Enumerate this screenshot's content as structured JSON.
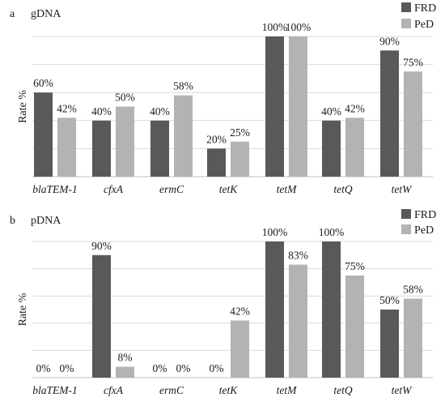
{
  "chart_data": [
    {
      "type": "bar",
      "panel_letter": "a",
      "title": "gDNA",
      "ylabel": "Rate %",
      "xlabel": "",
      "ylim": [
        0,
        100
      ],
      "grid": "horizontal",
      "legend_position": "top-right",
      "categories": [
        "blaTEM-1",
        "cfxA",
        "ermC",
        "tetK",
        "tetM",
        "tetQ",
        "tetW"
      ],
      "series": [
        {
          "name": "FRD",
          "color": "#595959",
          "values": [
            60,
            40,
            40,
            20,
            100,
            40,
            90
          ],
          "labels": [
            "60%",
            "40%",
            "40%",
            "20%",
            "100%",
            "40%",
            "90%"
          ]
        },
        {
          "name": "PeD",
          "color": "#b3b3b3",
          "values": [
            42,
            50,
            58,
            25,
            100,
            42,
            75
          ],
          "labels": [
            "42%",
            "50%",
            "58%",
            "25%",
            "100%",
            "42%",
            "75%"
          ]
        }
      ]
    },
    {
      "type": "bar",
      "panel_letter": "b",
      "title": "pDNA",
      "ylabel": "Rate %",
      "xlabel": "",
      "ylim": [
        0,
        100
      ],
      "grid": "horizontal",
      "legend_position": "top-right",
      "categories": [
        "blaTEM-1",
        "cfxA",
        "ermC",
        "tetK",
        "tetM",
        "tetQ",
        "tetW"
      ],
      "series": [
        {
          "name": "FRD",
          "color": "#595959",
          "values": [
            0,
            90,
            0,
            0,
            100,
            100,
            50
          ],
          "labels": [
            "0%",
            "90%",
            "0%",
            "0%",
            "100%",
            "100%",
            "50%"
          ]
        },
        {
          "name": "PeD",
          "color": "#b3b3b3",
          "values": [
            0,
            8,
            0,
            42,
            83,
            75,
            58
          ],
          "labels": [
            "0%",
            "8%",
            "0%",
            "42%",
            "83%",
            "75%",
            "58%"
          ]
        }
      ]
    }
  ]
}
